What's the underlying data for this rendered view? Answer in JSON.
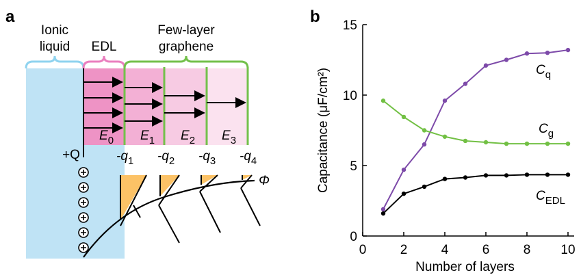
{
  "panel_a": {
    "label": "a",
    "ionic_liquid": [
      "Ionic",
      "liquid"
    ],
    "edl": "EDL",
    "graphene": [
      "Few-layer",
      "graphene"
    ],
    "fields": [
      "E0",
      "E1",
      "E2",
      "E3"
    ],
    "charge": "+Q",
    "layer_charges": [
      "-q1",
      "-q2",
      "-q3",
      "-q4"
    ],
    "potential": "Φ"
  },
  "chart_data": {
    "type": "line",
    "panel_label": "b",
    "x_label": "Number of layers",
    "y_label": "Capacitance (μF/cm²)",
    "x": [
      1,
      2,
      3,
      4,
      5,
      6,
      7,
      8,
      9,
      10
    ],
    "series": [
      {
        "name": "Cq",
        "color": "#7d4aa9",
        "values": [
          1.9,
          4.7,
          6.5,
          9.6,
          10.8,
          12.1,
          12.5,
          12.95,
          13.0,
          13.2
        ]
      },
      {
        "name": "Cg",
        "color": "#72c044",
        "values": [
          9.6,
          8.45,
          7.5,
          7.05,
          6.75,
          6.65,
          6.55,
          6.55,
          6.55,
          6.55
        ]
      },
      {
        "name": "CEDL",
        "color": "#000000",
        "values": [
          1.6,
          3.0,
          3.5,
          4.05,
          4.15,
          4.3,
          4.3,
          4.35,
          4.35,
          4.35
        ]
      }
    ],
    "xlim": [
      0,
      10.3
    ],
    "ylim": [
      0,
      15
    ],
    "xticks": [
      0,
      2,
      4,
      6,
      8,
      10
    ],
    "yticks": [
      0,
      5,
      10,
      15
    ]
  }
}
